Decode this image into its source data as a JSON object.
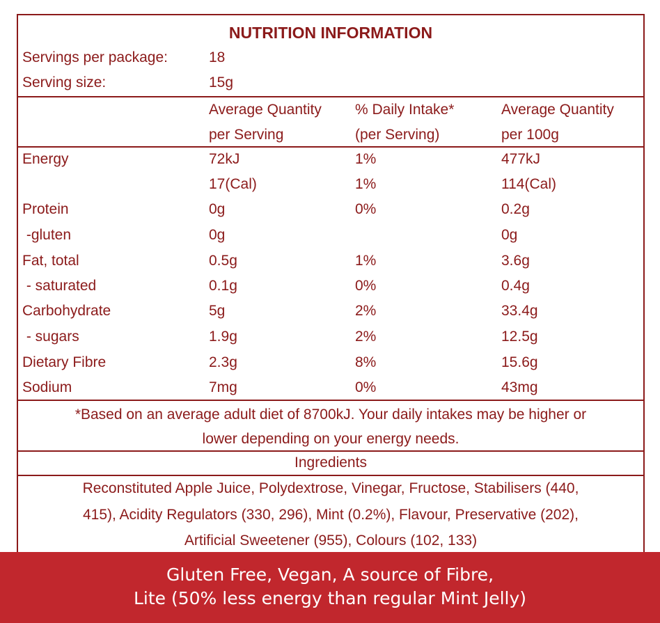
{
  "title": "NUTRITION INFORMATION",
  "servings": {
    "per_package_label": "Servings per package:",
    "per_package_value": "18",
    "size_label": "Serving size:",
    "size_value": "15g"
  },
  "columns": {
    "per_serving_1": "Average Quantity",
    "per_serving_2": "per Serving",
    "daily_1": "% Daily Intake*",
    "daily_2": "(per Serving)",
    "per100_1": "Average Quantity",
    "per100_2": "per 100g"
  },
  "rows": [
    {
      "name": "Energy",
      "serving": "72kJ",
      "daily": "1%",
      "per100": "477kJ"
    },
    {
      "name": "",
      "serving": "17(Cal)",
      "daily": "1%",
      "per100": "114(Cal)"
    },
    {
      "name": "Protein",
      "serving": "0g",
      "daily": "0%",
      "per100": "0.2g"
    },
    {
      "name": " -gluten",
      "serving": "0g",
      "daily": "",
      "per100": "0g"
    },
    {
      "name": "Fat, total",
      "serving": "0.5g",
      "daily": "1%",
      "per100": "3.6g"
    },
    {
      "name": " - saturated",
      "serving": "0.1g",
      "daily": "0%",
      "per100": "0.4g"
    },
    {
      "name": "Carbohydrate",
      "serving": "5g",
      "daily": "2%",
      "per100": "33.4g"
    },
    {
      "name": " - sugars",
      "serving": "1.9g",
      "daily": "2%",
      "per100": "12.5g"
    },
    {
      "name": "Dietary Fibre",
      "serving": "2.3g",
      "daily": "8%",
      "per100": "15.6g"
    },
    {
      "name": "Sodium",
      "serving": "7mg",
      "daily": "0%",
      "per100": "43mg"
    }
  ],
  "footnote": {
    "line1": "*Based on an average adult diet of 8700kJ. Your daily intakes may be higher or",
    "line2": "lower depending on your energy needs."
  },
  "ingredients": {
    "heading": "Ingredients",
    "line1": "Reconstituted Apple Juice, Polydextrose, Vinegar, Fructose, Stabilisers (440,",
    "line2": "415), Acidity Regulators (330, 296), Mint (0.2%), Flavour, Preservative (202),",
    "line3": "Artificial Sweetener (955), Colours (102, 133)"
  },
  "banner": {
    "line1": "Gluten Free, Vegan, A source of Fibre,",
    "line2": "Lite (50% less energy than regular Mint Jelly)"
  },
  "colors": {
    "text": "#8b1a1a",
    "banner_bg": "#c1272d",
    "banner_text": "#ffffff"
  }
}
